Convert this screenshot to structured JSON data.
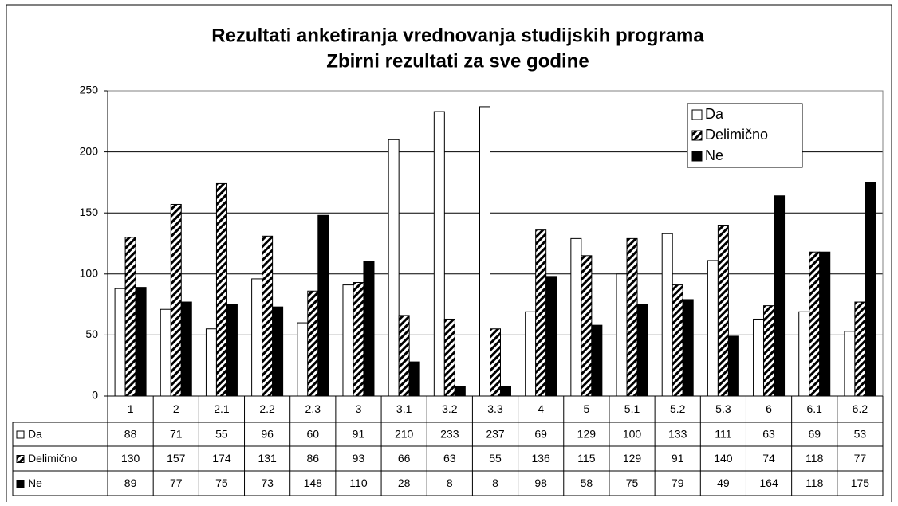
{
  "chart_data": {
    "type": "bar",
    "title": "Rezultati anketiranja vrednovanja studijskih programa",
    "subtitle": "Zbirni rezultati za sve godine",
    "categories": [
      "1",
      "2",
      "2.1",
      "2.2",
      "2.3",
      "3",
      "3.1",
      "3.2",
      "3.3",
      "4",
      "5",
      "5.1",
      "5.2",
      "5.3",
      "6",
      "6.1",
      "6.2"
    ],
    "series": [
      {
        "name": "Da",
        "color": "#ffffff",
        "values": [
          88,
          71,
          55,
          96,
          60,
          91,
          210,
          233,
          237,
          69,
          129,
          100,
          133,
          111,
          63,
          69,
          53
        ]
      },
      {
        "name": "Delimično",
        "color": "#000000",
        "pattern": "diagonal-hatch",
        "values": [
          130,
          157,
          174,
          131,
          86,
          93,
          66,
          63,
          55,
          136,
          115,
          129,
          91,
          140,
          74,
          118,
          77
        ]
      },
      {
        "name": "Ne",
        "color": "#000000",
        "values": [
          89,
          77,
          75,
          73,
          148,
          110,
          28,
          8,
          8,
          98,
          58,
          75,
          79,
          49,
          164,
          118,
          175
        ]
      }
    ],
    "ylim": [
      0,
      250
    ],
    "yticks": [
      0,
      50,
      100,
      150,
      200,
      250
    ],
    "grid": true,
    "legend": "top-right",
    "data_table": true
  }
}
